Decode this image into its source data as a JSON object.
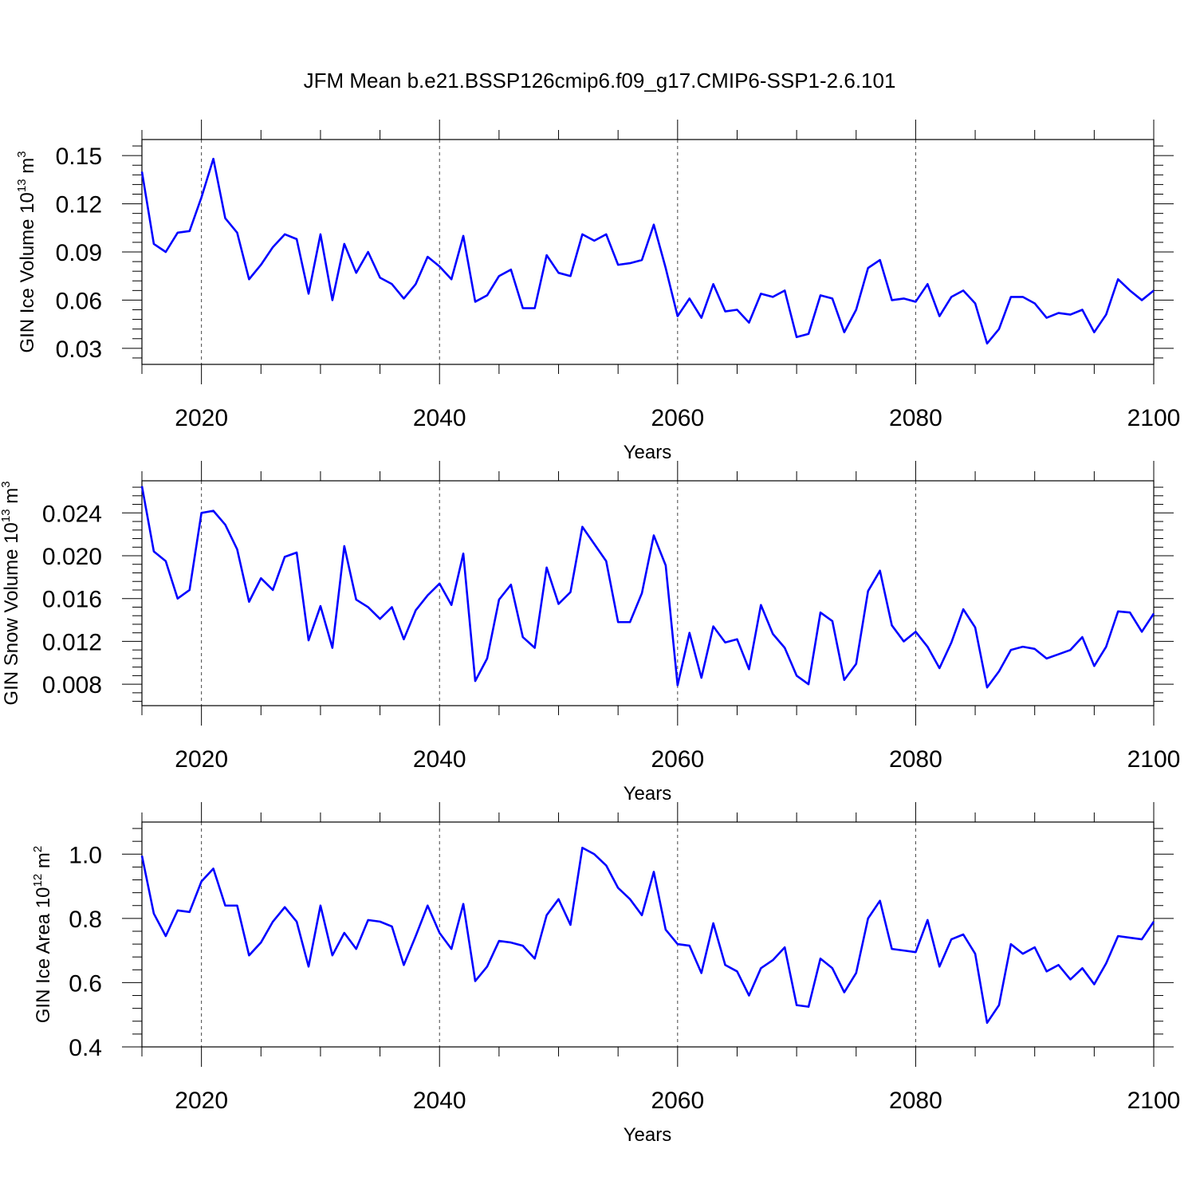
{
  "title": "JFM Mean b.e21.BSSP126cmip6.f09_g17.CMIP6-SSP1-2.6.101",
  "line_color": "#0000ff",
  "chart_data": [
    {
      "type": "line",
      "ylabel": "GIN Ice Volume",
      "unit_base": "10",
      "unit_exp": "13",
      "unit_sym": "m",
      "unit_pow": "3",
      "xlabel": "Years",
      "xlim": [
        2015,
        2100
      ],
      "ylim": [
        0.02,
        0.16
      ],
      "yticks": [
        "0.03",
        "0.06",
        "0.09",
        "0.12",
        "0.15"
      ],
      "ytick_values": [
        0.03,
        0.06,
        0.09,
        0.12,
        0.15
      ],
      "xticks": [
        "2020",
        "2040",
        "2060",
        "2080",
        "2100"
      ],
      "xtick_values": [
        2020,
        2040,
        2060,
        2080,
        2100
      ],
      "x_start": 2015,
      "values": [
        0.14,
        0.095,
        0.09,
        0.102,
        0.103,
        0.124,
        0.148,
        0.111,
        0.102,
        0.073,
        0.082,
        0.093,
        0.101,
        0.098,
        0.064,
        0.101,
        0.06,
        0.095,
        0.077,
        0.09,
        0.074,
        0.07,
        0.061,
        0.07,
        0.087,
        0.081,
        0.073,
        0.1,
        0.059,
        0.063,
        0.075,
        0.079,
        0.055,
        0.055,
        0.088,
        0.077,
        0.075,
        0.101,
        0.097,
        0.101,
        0.082,
        0.083,
        0.085,
        0.107,
        0.08,
        0.05,
        0.061,
        0.049,
        0.07,
        0.053,
        0.054,
        0.046,
        0.064,
        0.062,
        0.066,
        0.037,
        0.039,
        0.063,
        0.061,
        0.04,
        0.054,
        0.08,
        0.085,
        0.06,
        0.061,
        0.059,
        0.07,
        0.05,
        0.062,
        0.066,
        0.058,
        0.033,
        0.042,
        0.062,
        0.062,
        0.058,
        0.049,
        0.052,
        0.051,
        0.054,
        0.04,
        0.051,
        0.073,
        0.066,
        0.06,
        0.066
      ]
    },
    {
      "type": "line",
      "ylabel": "GIN Snow Volume",
      "unit_base": "10",
      "unit_exp": "13",
      "unit_sym": "m",
      "unit_pow": "3",
      "xlabel": "Years",
      "xlim": [
        2015,
        2100
      ],
      "ylim": [
        0.006,
        0.027
      ],
      "yticks": [
        "0.008",
        "0.012",
        "0.016",
        "0.020",
        "0.024"
      ],
      "ytick_values": [
        0.008,
        0.012,
        0.016,
        0.02,
        0.024
      ],
      "xticks": [
        "2020",
        "2040",
        "2060",
        "2080",
        "2100"
      ],
      "xtick_values": [
        2020,
        2040,
        2060,
        2080,
        2100
      ],
      "x_start": 2015,
      "values": [
        0.0265,
        0.0204,
        0.0195,
        0.016,
        0.0168,
        0.024,
        0.0242,
        0.0229,
        0.0206,
        0.0157,
        0.0179,
        0.0168,
        0.0199,
        0.0203,
        0.0121,
        0.0153,
        0.0114,
        0.0209,
        0.0159,
        0.0152,
        0.0141,
        0.0152,
        0.0122,
        0.0149,
        0.0163,
        0.0174,
        0.0154,
        0.0202,
        0.0083,
        0.0104,
        0.0159,
        0.0173,
        0.0124,
        0.0114,
        0.0189,
        0.0155,
        0.0166,
        0.0227,
        0.0211,
        0.0195,
        0.0138,
        0.0138,
        0.0165,
        0.0219,
        0.0191,
        0.0079,
        0.0128,
        0.0086,
        0.0134,
        0.0119,
        0.0122,
        0.0094,
        0.0154,
        0.0127,
        0.0114,
        0.0088,
        0.008,
        0.0147,
        0.0139,
        0.0084,
        0.0099,
        0.0167,
        0.0186,
        0.0135,
        0.012,
        0.0129,
        0.0115,
        0.0095,
        0.0119,
        0.015,
        0.0133,
        0.0077,
        0.0092,
        0.0112,
        0.0115,
        0.0113,
        0.0104,
        0.0108,
        0.0112,
        0.0124,
        0.0097,
        0.0115,
        0.0148,
        0.0147,
        0.0129,
        0.0146
      ]
    },
    {
      "type": "line",
      "ylabel": "GIN Ice Area",
      "unit_base": "10",
      "unit_exp": "12",
      "unit_sym": "m",
      "unit_pow": "2",
      "xlabel": "Years",
      "xlim": [
        2015,
        2100
      ],
      "ylim": [
        0.4,
        1.1
      ],
      "yticks": [
        "0.4",
        "0.6",
        "0.8",
        "1.0"
      ],
      "ytick_values": [
        0.4,
        0.6,
        0.8,
        1.0
      ],
      "xticks": [
        "2020",
        "2040",
        "2060",
        "2080",
        "2100"
      ],
      "xtick_values": [
        2020,
        2040,
        2060,
        2080,
        2100
      ],
      "x_start": 2015,
      "values": [
        0.995,
        0.815,
        0.745,
        0.825,
        0.82,
        0.915,
        0.955,
        0.84,
        0.84,
        0.685,
        0.725,
        0.79,
        0.835,
        0.79,
        0.65,
        0.84,
        0.685,
        0.755,
        0.705,
        0.795,
        0.79,
        0.775,
        0.655,
        0.745,
        0.84,
        0.755,
        0.705,
        0.845,
        0.605,
        0.65,
        0.73,
        0.725,
        0.715,
        0.675,
        0.81,
        0.86,
        0.78,
        1.02,
        1.0,
        0.965,
        0.895,
        0.86,
        0.81,
        0.945,
        0.765,
        0.72,
        0.715,
        0.63,
        0.785,
        0.655,
        0.635,
        0.56,
        0.645,
        0.67,
        0.71,
        0.53,
        0.525,
        0.675,
        0.645,
        0.57,
        0.63,
        0.8,
        0.855,
        0.705,
        0.7,
        0.695,
        0.795,
        0.65,
        0.735,
        0.75,
        0.69,
        0.475,
        0.53,
        0.72,
        0.69,
        0.71,
        0.635,
        0.655,
        0.61,
        0.645,
        0.595,
        0.66,
        0.745,
        0.74,
        0.735,
        0.79
      ]
    }
  ]
}
